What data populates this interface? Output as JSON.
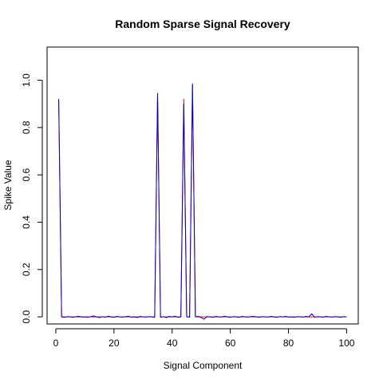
{
  "chart_data": {
    "type": "line",
    "title": "Random Sparse Signal Recovery",
    "xlabel": "Signal Component",
    "ylabel": "Spike Value",
    "xlim": [
      -3,
      104
    ],
    "ylim": [
      -0.03,
      1.14
    ],
    "xticks": [
      0,
      20,
      40,
      60,
      80,
      100
    ],
    "xtick_labels": [
      "0",
      "20",
      "40",
      "60",
      "80",
      "100"
    ],
    "yticks": [
      0.0,
      0.2,
      0.4,
      0.6,
      0.8,
      1.0
    ],
    "ytick_labels": [
      "0.0",
      "0.2",
      "0.4",
      "0.6",
      "0.8",
      "1.0"
    ],
    "x": [
      1,
      2,
      3,
      4,
      5,
      6,
      7,
      8,
      9,
      10,
      11,
      12,
      13,
      14,
      15,
      16,
      17,
      18,
      19,
      20,
      21,
      22,
      23,
      24,
      25,
      26,
      27,
      28,
      29,
      30,
      31,
      32,
      33,
      34,
      35,
      36,
      37,
      38,
      39,
      40,
      41,
      42,
      43,
      44,
      45,
      46,
      47,
      48,
      49,
      50,
      51,
      52,
      53,
      54,
      55,
      56,
      57,
      58,
      59,
      60,
      61,
      62,
      63,
      64,
      65,
      66,
      67,
      68,
      69,
      70,
      71,
      72,
      73,
      74,
      75,
      76,
      77,
      78,
      79,
      80,
      81,
      82,
      83,
      84,
      85,
      86,
      87,
      88,
      89,
      90,
      91,
      92,
      93,
      94,
      95,
      96,
      97,
      98,
      99,
      100
    ],
    "series": [
      {
        "color": "#ff0000",
        "values": [
          0.92,
          0,
          0,
          0,
          0,
          0,
          0,
          0,
          0,
          0,
          0,
          0,
          0,
          0,
          0,
          0,
          0,
          0,
          0,
          0,
          0,
          0,
          0,
          0,
          0,
          0,
          0,
          0,
          0,
          0,
          0,
          0,
          0,
          0,
          0.94,
          0,
          0,
          0,
          0,
          0,
          0,
          0,
          0,
          0.92,
          0,
          0,
          0.98,
          0,
          0,
          0,
          0,
          0,
          0,
          0,
          0,
          0,
          0,
          0,
          0,
          0,
          0,
          0,
          0,
          0,
          0,
          0,
          0,
          0,
          0,
          0,
          0,
          0,
          0,
          0,
          0,
          0,
          0,
          0,
          0,
          0,
          0,
          0,
          0,
          0,
          0,
          0,
          0,
          0,
          0,
          0,
          0,
          0,
          0,
          0,
          0,
          0,
          0,
          0,
          0,
          0
        ]
      },
      {
        "color": "#0000cc",
        "values": [
          0.92,
          0.0,
          -0.002,
          0.001,
          0.0,
          -0.002,
          0.001,
          0.002,
          -0.001,
          0.0,
          -0.002,
          0.001,
          0.004,
          0.0,
          -0.003,
          0.001,
          -0.002,
          0.003,
          0.0,
          -0.002,
          0.002,
          0.0,
          -0.001,
          0.001,
          0.003,
          -0.002,
          0.0,
          -0.003,
          0.002,
          0.0,
          -0.001,
          0.001,
          0.0,
          -0.002,
          0.945,
          -0.002,
          0.001,
          -0.003,
          0.002,
          0.0,
          0.003,
          -0.002,
          0.0,
          0.9,
          0.001,
          -0.002,
          0.985,
          0.0,
          0.002,
          -0.003,
          -0.01,
          0.001,
          0.0,
          -0.002,
          0.002,
          0.0,
          -0.001,
          0.003,
          0.0,
          -0.002,
          0.001,
          0.0,
          -0.002,
          0.002,
          0.0,
          -0.001,
          0.001,
          0.002,
          0.0,
          -0.002,
          0.001,
          0.0,
          -0.001,
          0.002,
          0.0,
          -0.002,
          0.001,
          0.0,
          0.002,
          -0.001,
          0.0,
          -0.002,
          0.001,
          0.0,
          -0.001,
          0.002,
          0.0,
          0.013,
          -0.002,
          0.001,
          0.0,
          -0.001,
          0.002,
          0.0,
          -0.001,
          0.001,
          0.0,
          -0.002,
          0.001,
          0.0
        ]
      }
    ],
    "grid": false
  }
}
